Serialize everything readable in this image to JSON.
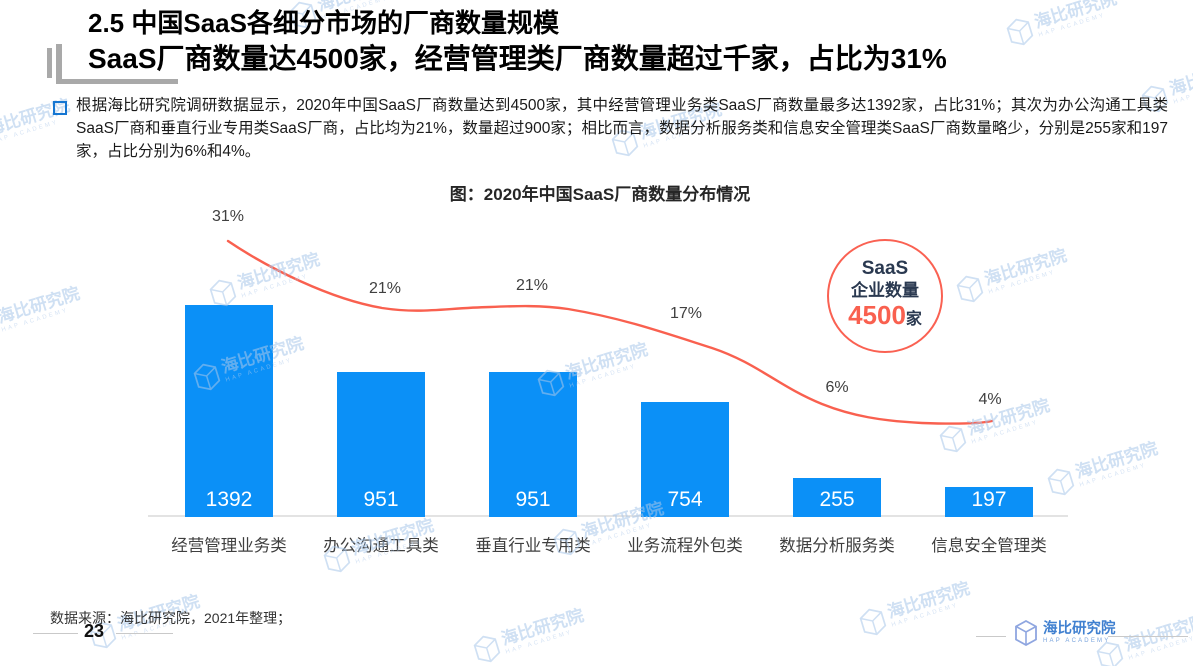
{
  "header": {
    "title_line1": "2.5 中国SaaS各细分市场的厂商数量规模",
    "title_line2": "SaaS厂商数量达4500家，经营管理类厂商数量超过千家，占比为31%"
  },
  "body": {
    "bullet_text": "根据海比研究院调研数据显示，2020年中国SaaS厂商数量达到4500家，其中经营管理业务类SaaS厂商数量最多达1392家，占比31%；其次为办公沟通工具类SaaS厂商和垂直行业专用类SaaS厂商，占比均为21%，数量超过900家；相比而言，数据分析服务类和信息安全管理类SaaS厂商数量略少，分别是255家和197家，占比分别为6%和4%。"
  },
  "chart_data": {
    "type": "bar",
    "title": "图：2020年中国SaaS厂商数量分布情况",
    "categories": [
      "经营管理业务类",
      "办公沟通工具类",
      "垂直行业专用类",
      "业务流程外包类",
      "数据分析服务类",
      "信息安全管理类"
    ],
    "values": [
      1392,
      951,
      951,
      754,
      255,
      197
    ],
    "percents": [
      31,
      21,
      21,
      17,
      6,
      4
    ],
    "percent_labels": [
      "31%",
      "21%",
      "21%",
      "17%",
      "6%",
      "4%"
    ],
    "xlabel": "",
    "ylabel": "",
    "ylim": [
      0,
      1500
    ],
    "grid": false,
    "legend_position": "none",
    "bar_color": "#0b90f7",
    "line_color": "#f9604f",
    "badge": {
      "line1": "SaaS",
      "line2": "企业数量",
      "value": "4500",
      "unit": "家"
    }
  },
  "footer": {
    "source": "数据来源：海比研究院，2021年整理；",
    "page_number": "23",
    "logo_name": "海比研究院",
    "logo_sub": "HAP ACADEMY"
  },
  "watermark": {
    "text": "海比研究院",
    "sub": "HAP ACADEMY"
  },
  "colors": {
    "bar_blue": "#0b90f7",
    "accent_red": "#f9604f",
    "title_black": "#000000",
    "bullet_blue": "#1576d2",
    "watermark_blue": "#a9c7ea"
  }
}
